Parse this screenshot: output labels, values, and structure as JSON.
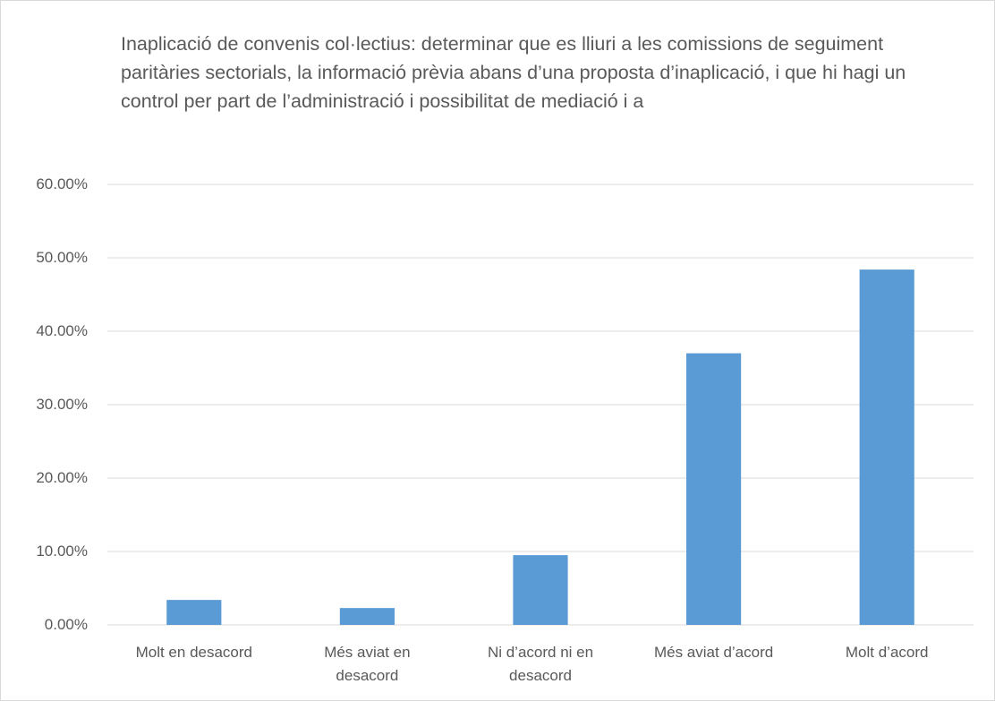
{
  "chart_data": {
    "type": "bar",
    "title": "Inaplicació de convenis col·lectius: determinar que es lliuri a les comissions de seguiment paritàries sectorials, la informació prèvia abans d’una proposta d’inaplicació, i que hi hagi un control per part de l’administració i possibilitat de mediació i a",
    "categories": [
      "Molt en desacord",
      "Més aviat en desacord",
      "Ni d’acord ni en desacord",
      "Més aviat d’acord",
      "Molt d’acord"
    ],
    "values": [
      3.4,
      2.3,
      9.5,
      37.0,
      48.4
    ],
    "color": "#5b9bd5",
    "ylim": [
      0,
      60
    ],
    "yticks": [
      {
        "value": 0,
        "label": "0.00%"
      },
      {
        "value": 10,
        "label": "10.00%"
      },
      {
        "value": 20,
        "label": "20.00%"
      },
      {
        "value": 30,
        "label": "30.00%"
      },
      {
        "value": 40,
        "label": "40.00%"
      },
      {
        "value": 50,
        "label": "50.00%"
      },
      {
        "value": 60,
        "label": "60.00%"
      }
    ],
    "grid": true
  }
}
